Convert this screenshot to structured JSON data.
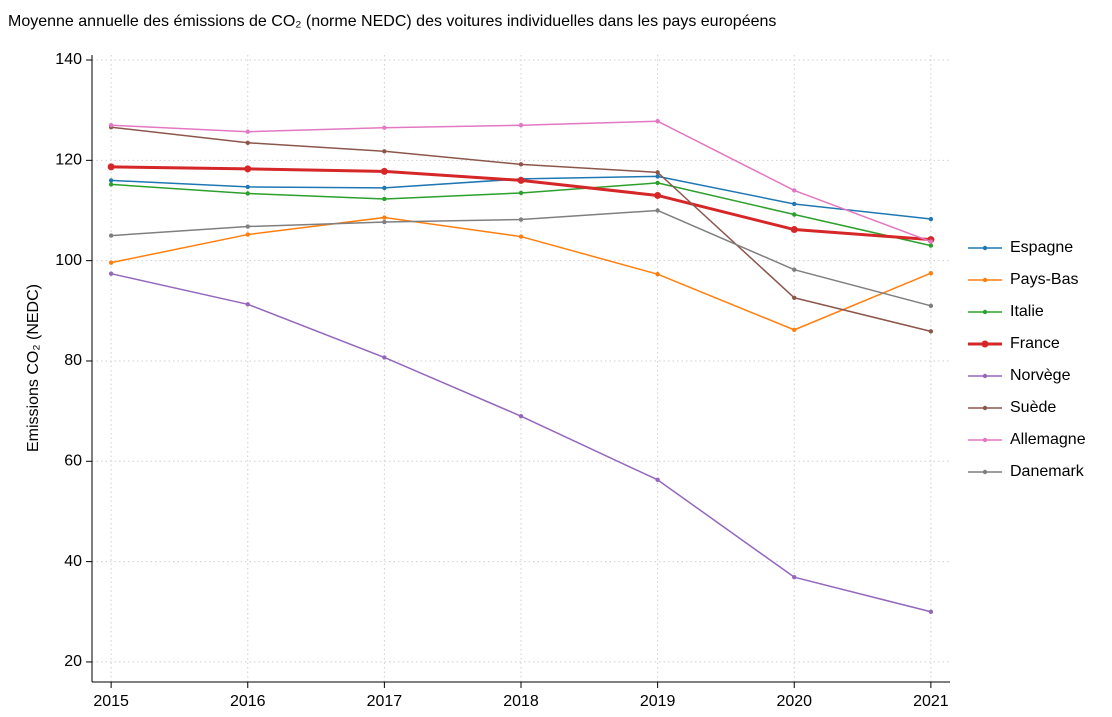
{
  "chart_data": {
    "type": "line",
    "title": "Moyenne annuelle des émissions de CO₂ (norme NEDC) des voitures individuelles dans les pays européens",
    "y_label": "Emissions CO₂ (NEDC)",
    "x": [
      2015,
      2016,
      2017,
      2018,
      2019,
      2020,
      2021
    ],
    "xlim": [
      2014.86,
      2021.14
    ],
    "xticks": [
      2015,
      2016,
      2017,
      2018,
      2019,
      2020,
      2021
    ],
    "ylim": [
      16,
      141
    ],
    "yticks": [
      20,
      40,
      60,
      80,
      100,
      120,
      140
    ],
    "grid": true,
    "legend": "right",
    "series": [
      {
        "name": "Espagne",
        "color": "#1f77b4",
        "line_width": 1.5,
        "values": [
          116,
          114.7,
          114.5,
          116.3,
          116.8,
          111.3,
          108.3
        ]
      },
      {
        "name": "Pays-Bas",
        "color": "#ff7f0e",
        "line_width": 1.5,
        "values": [
          99.6,
          105.2,
          108.6,
          104.8,
          97.3,
          86.2,
          97.5
        ]
      },
      {
        "name": "Italie",
        "color": "#2ca02c",
        "line_width": 1.5,
        "values": [
          115.2,
          113.4,
          112.3,
          113.5,
          115.5,
          109.2,
          103
        ]
      },
      {
        "name": "France",
        "color": "#d62728",
        "line_width": 3,
        "values": [
          118.7,
          118.3,
          117.8,
          116,
          113,
          106.2,
          104.2
        ]
      },
      {
        "name": "Norvège",
        "color": "#9467bd",
        "line_width": 1.5,
        "values": [
          97.4,
          91.3,
          80.7,
          69,
          56.3,
          36.9,
          30
        ]
      },
      {
        "name": "Suède",
        "color": "#8c564b",
        "line_width": 1.5,
        "values": [
          126.6,
          123.5,
          121.8,
          119.2,
          117.6,
          92.6,
          85.9
        ]
      },
      {
        "name": "Allemagne",
        "color": "#e377c2",
        "line_width": 1.5,
        "values": [
          127,
          125.7,
          126.5,
          127,
          127.8,
          114,
          103.8
        ]
      },
      {
        "name": "Danemark",
        "color": "#7f7f7f",
        "line_width": 1.5,
        "values": [
          105,
          106.8,
          107.7,
          108.2,
          110,
          98.2,
          91
        ]
      }
    ]
  }
}
